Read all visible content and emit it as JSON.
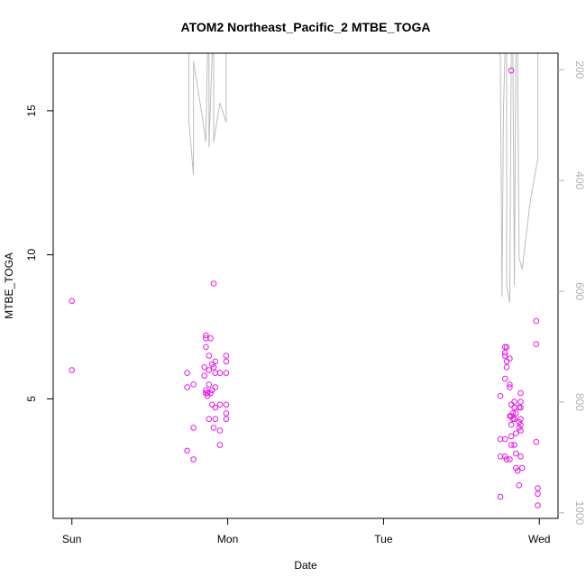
{
  "chart_data": {
    "type": "scatter",
    "title": "ATOM2 Northeast_Pacific_2 MTBE_TOGA",
    "xlabel": "Date",
    "ylabel": "MTBE_TOGA",
    "x_axis": {
      "ticks": [
        {
          "day": 0,
          "label": "Sun"
        },
        {
          "day": 1,
          "label": "Mon"
        },
        {
          "day": 2,
          "label": "Tue"
        },
        {
          "day": 3,
          "label": "Wed"
        }
      ],
      "range": [
        -0.12,
        3.12
      ]
    },
    "y_axis": {
      "ticks": [
        {
          "value": 5,
          "label": "5"
        },
        {
          "value": 10,
          "label": "10"
        },
        {
          "value": 15,
          "label": "15"
        }
      ],
      "range": [
        0.85,
        17.0
      ]
    },
    "y2_axis": {
      "ticks": [
        {
          "value": 200,
          "label": "200"
        },
        {
          "value": 400,
          "label": "400"
        },
        {
          "value": 600,
          "label": "600"
        },
        {
          "value": 800,
          "label": "800"
        },
        {
          "value": 1000,
          "label": "1000"
        }
      ],
      "range": [
        1010,
        170
      ],
      "color": "#b0b0b0"
    },
    "grid": false,
    "series": [
      {
        "kind": "points",
        "color": "#e619e6",
        "points": [
          [
            0.0,
            8.4
          ],
          [
            0.0,
            6.0
          ],
          [
            0.74,
            5.9
          ],
          [
            0.74,
            5.4
          ],
          [
            0.74,
            3.2
          ],
          [
            0.78,
            5.5
          ],
          [
            0.78,
            2.9
          ],
          [
            0.78,
            4.0
          ],
          [
            0.85,
            6.1
          ],
          [
            0.85,
            5.8
          ],
          [
            0.86,
            7.1
          ],
          [
            0.86,
            7.2
          ],
          [
            0.86,
            6.8
          ],
          [
            0.86,
            5.3
          ],
          [
            0.86,
            5.2
          ],
          [
            0.87,
            5.1
          ],
          [
            0.87,
            5.2
          ],
          [
            0.88,
            6.5
          ],
          [
            0.88,
            6.0
          ],
          [
            0.88,
            5.5
          ],
          [
            0.88,
            4.3
          ],
          [
            0.89,
            7.1
          ],
          [
            0.89,
            5.2
          ],
          [
            0.9,
            5.3
          ],
          [
            0.9,
            4.8
          ],
          [
            0.9,
            6.2
          ],
          [
            0.91,
            6.1
          ],
          [
            0.91,
            9.0
          ],
          [
            0.91,
            4.0
          ],
          [
            0.92,
            6.3
          ],
          [
            0.92,
            5.9
          ],
          [
            0.92,
            5.4
          ],
          [
            0.92,
            4.7
          ],
          [
            0.92,
            4.3
          ],
          [
            0.95,
            5.9
          ],
          [
            0.95,
            4.8
          ],
          [
            0.95,
            3.9
          ],
          [
            0.95,
            3.4
          ],
          [
            0.99,
            6.5
          ],
          [
            0.99,
            6.3
          ],
          [
            0.99,
            5.9
          ],
          [
            0.99,
            4.8
          ],
          [
            0.99,
            4.5
          ],
          [
            0.99,
            4.3
          ],
          [
            2.75,
            5.1
          ],
          [
            2.75,
            3.6
          ],
          [
            2.75,
            3.0
          ],
          [
            2.75,
            1.6
          ],
          [
            2.78,
            6.8
          ],
          [
            2.78,
            6.6
          ],
          [
            2.78,
            6.5
          ],
          [
            2.78,
            5.7
          ],
          [
            2.78,
            3.6
          ],
          [
            2.78,
            3.0
          ],
          [
            2.79,
            6.8
          ],
          [
            2.79,
            6.3
          ],
          [
            2.79,
            6.1
          ],
          [
            2.79,
            2.9
          ],
          [
            2.81,
            5.4
          ],
          [
            2.81,
            5.5
          ],
          [
            2.81,
            4.4
          ],
          [
            2.81,
            2.9
          ],
          [
            2.81,
            6.4
          ],
          [
            2.82,
            16.4
          ],
          [
            2.82,
            4.8
          ],
          [
            2.82,
            4.4
          ],
          [
            2.82,
            4.1
          ],
          [
            2.82,
            3.7
          ],
          [
            2.82,
            3.4
          ],
          [
            2.83,
            4.5
          ],
          [
            2.83,
            4.3
          ],
          [
            2.84,
            4.9
          ],
          [
            2.84,
            4.7
          ],
          [
            2.84,
            4.3
          ],
          [
            2.84,
            3.4
          ],
          [
            2.85,
            4.5
          ],
          [
            2.85,
            3.8
          ],
          [
            2.85,
            3.1
          ],
          [
            2.85,
            2.6
          ],
          [
            2.86,
            2.5
          ],
          [
            2.87,
            4.7
          ],
          [
            2.87,
            4.2
          ],
          [
            2.87,
            4.0
          ],
          [
            2.88,
            5.2
          ],
          [
            2.88,
            4.9
          ],
          [
            2.88,
            4.7
          ],
          [
            2.88,
            4.3
          ],
          [
            2.88,
            4.1
          ],
          [
            2.88,
            3.9
          ],
          [
            2.88,
            3.0
          ],
          [
            2.87,
            2.0
          ],
          [
            2.89,
            2.6
          ],
          [
            2.98,
            7.7
          ],
          [
            2.98,
            6.9
          ],
          [
            2.98,
            3.5
          ],
          [
            2.99,
            1.9
          ],
          [
            2.99,
            1.7
          ],
          [
            2.99,
            1.3
          ]
        ]
      },
      {
        "kind": "line",
        "axis": "y2",
        "color": "#bdbdbd",
        "segments": [
          [
            [
              0.75,
              170
            ],
            [
              0.75,
              290
            ],
            [
              0.78,
              390
            ],
            [
              0.78,
              185
            ],
            [
              0.84,
              290
            ],
            [
              0.86,
              330
            ],
            [
              0.87,
              170
            ],
            [
              0.88,
              170
            ],
            [
              0.88,
              340
            ],
            [
              0.9,
              170
            ],
            [
              0.91,
              170
            ],
            [
              0.91,
              330
            ],
            [
              0.95,
              260
            ],
            [
              0.99,
              295
            ],
            [
              0.99,
              170
            ]
          ],
          [
            [
              2.74,
              170
            ],
            [
              2.75,
              175
            ],
            [
              2.76,
              610
            ],
            [
              2.77,
              270
            ],
            [
              2.78,
              170
            ],
            [
              2.79,
              170
            ],
            [
              2.79,
              590
            ],
            [
              2.81,
              620
            ],
            [
              2.82,
              170
            ],
            [
              2.83,
              170
            ],
            [
              2.84,
              590
            ],
            [
              2.85,
              170
            ],
            [
              2.86,
              170
            ],
            [
              2.87,
              540
            ],
            [
              2.89,
              560
            ],
            [
              2.94,
              440
            ],
            [
              2.99,
              360
            ],
            [
              2.99,
              170
            ]
          ]
        ]
      }
    ]
  }
}
